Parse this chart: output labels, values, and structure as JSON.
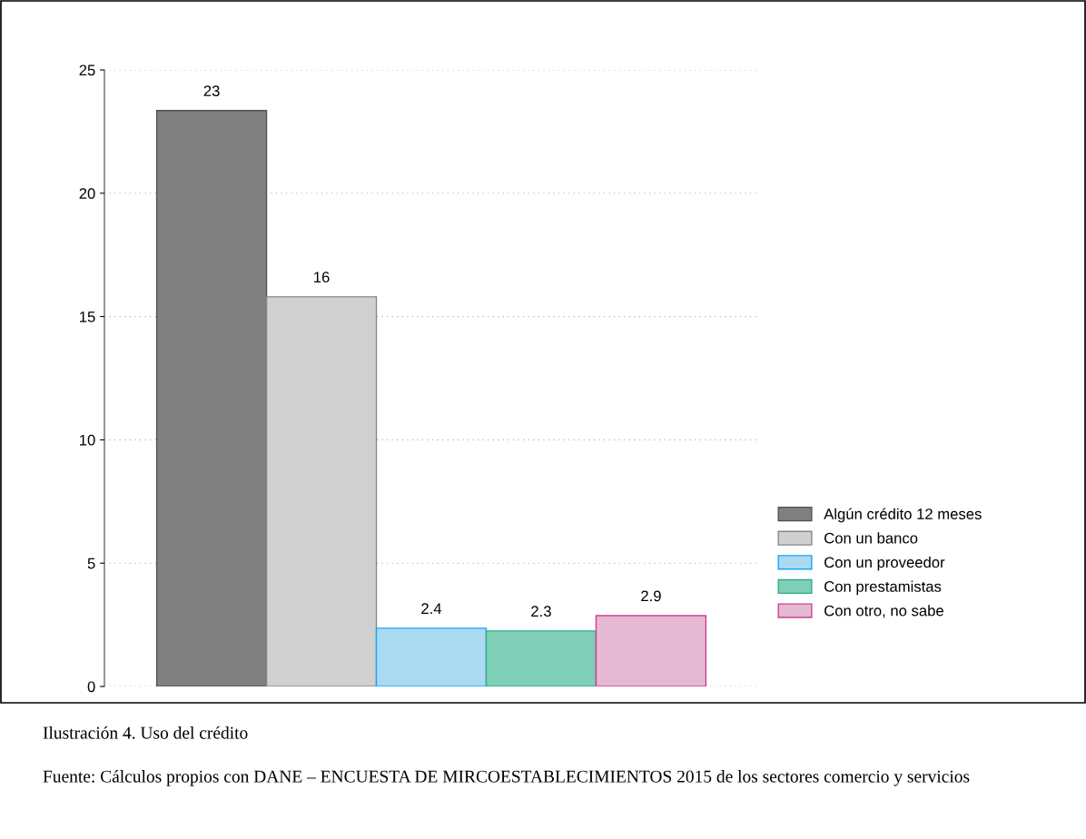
{
  "chart_data": {
    "type": "bar",
    "categories": [
      null
    ],
    "series": [
      {
        "name": "Algún crédito 12 meses",
        "color": "#808080",
        "values": [
          23.35
        ],
        "value_labels": [
          "23"
        ]
      },
      {
        "name": "Con un banco",
        "color": "#d0d0d0",
        "values": [
          15.8
        ],
        "value_labels": [
          "16"
        ]
      },
      {
        "name": "Con un proveedor",
        "color": "#acd9f2",
        "values": [
          2.36
        ],
        "value_labels": [
          "2.4"
        ]
      },
      {
        "name": "Con prestamistas",
        "color": "#80cfb8",
        "values": [
          2.25
        ],
        "value_labels": [
          "2.3"
        ]
      },
      {
        "name": "Con otro, no sabe",
        "color": "#e5b9d2",
        "values": [
          2.87
        ],
        "value_labels": [
          "2.9"
        ]
      }
    ],
    "ylim": [
      0,
      25
    ],
    "yticks": [
      0,
      5,
      10,
      15,
      20,
      25
    ],
    "grid": "y",
    "legend": "right",
    "annotations": [
      "Ilustración 4. Uso del crédito",
      "Fuente: Cálculos propios con DANE – ENCUESTA DE MIRCOESTABLECIMIENTOS 2015 de los sectores comercio y servicios"
    ]
  }
}
